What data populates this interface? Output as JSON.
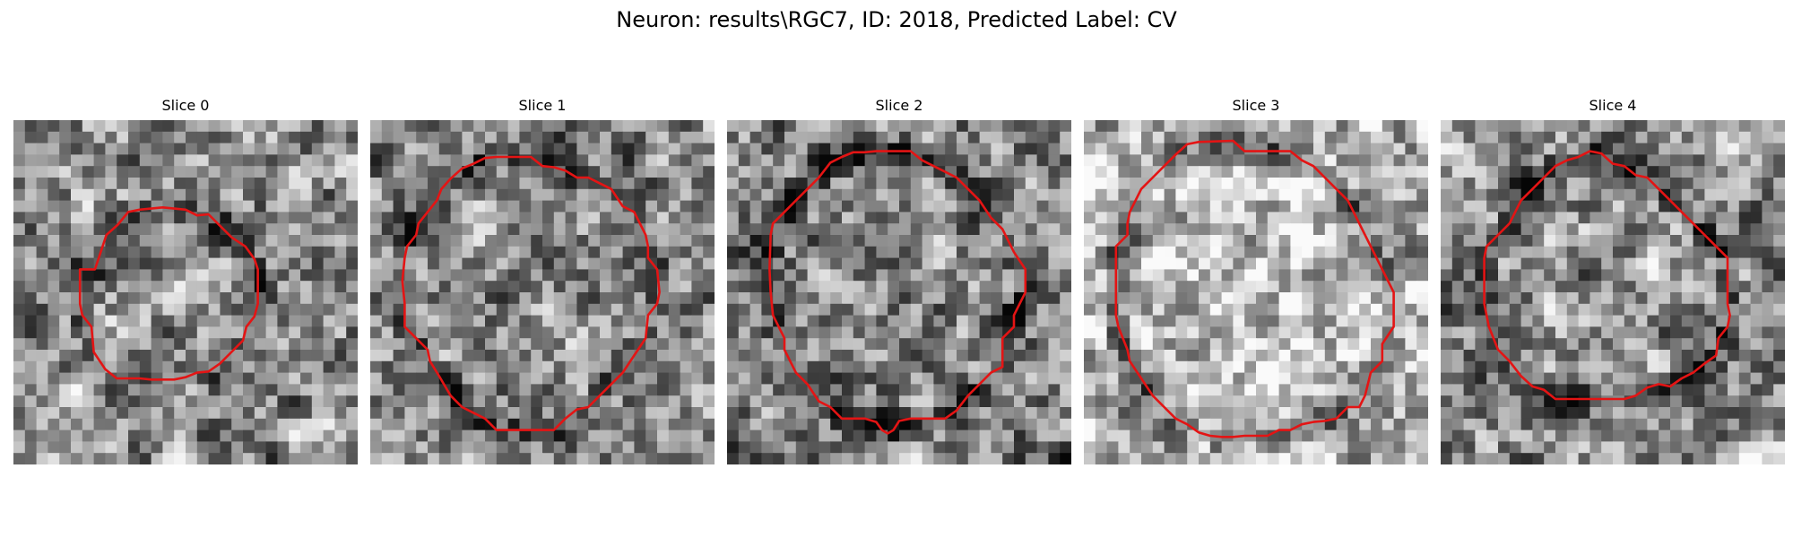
{
  "figure": {
    "title": "Neuron: results\\RGC7, ID: 2018, Predicted Label: CV"
  },
  "slices": [
    {
      "title": "Slice 0",
      "grid_size": 30,
      "base_tone": 0.56,
      "contour_color": "#e41414",
      "contour": [
        [
          7.1,
          13.0
        ],
        [
          8.1,
          10.0
        ],
        [
          9.1,
          9.1
        ],
        [
          10.0,
          8.0
        ],
        [
          11.0,
          7.8
        ],
        [
          13.0,
          7.6
        ],
        [
          15.0,
          7.8
        ],
        [
          16.0,
          8.3
        ],
        [
          17.0,
          8.2
        ],
        [
          18.0,
          9.2
        ],
        [
          19.0,
          10.2
        ],
        [
          20.2,
          11.0
        ],
        [
          21.0,
          12.1
        ],
        [
          21.3,
          13.0
        ],
        [
          21.3,
          16.0
        ],
        [
          21.0,
          17.1
        ],
        [
          20.3,
          18.0
        ],
        [
          20.0,
          19.2
        ],
        [
          19.2,
          20.0
        ],
        [
          18.0,
          21.2
        ],
        [
          17.0,
          21.9
        ],
        [
          16.0,
          22.0
        ],
        [
          15.0,
          22.4
        ],
        [
          14.0,
          22.6
        ],
        [
          12.0,
          22.6
        ],
        [
          11.0,
          22.5
        ],
        [
          9.0,
          22.5
        ],
        [
          8.0,
          21.7
        ],
        [
          7.0,
          20.2
        ],
        [
          6.8,
          18.0
        ],
        [
          6.0,
          17.0
        ],
        [
          5.8,
          16.0
        ],
        [
          5.8,
          13.0
        ]
      ]
    },
    {
      "title": "Slice 1",
      "grid_size": 30,
      "base_tone": 0.52,
      "contour_color": "#e41414",
      "contour": [
        [
          5.8,
          7.0
        ],
        [
          6.2,
          6.0
        ],
        [
          7.0,
          5.1
        ],
        [
          8.0,
          4.2
        ],
        [
          9.0,
          3.8
        ],
        [
          10.0,
          3.3
        ],
        [
          11.0,
          3.2
        ],
        [
          14.0,
          3.2
        ],
        [
          15.0,
          4.0
        ],
        [
          16.0,
          4.1
        ],
        [
          17.0,
          4.4
        ],
        [
          18.0,
          5.0
        ],
        [
          19.0,
          5.0
        ],
        [
          20.0,
          5.5
        ],
        [
          21.0,
          6.0
        ],
        [
          22.0,
          7.5
        ],
        [
          23.0,
          8.0
        ],
        [
          24.0,
          10.0
        ],
        [
          24.2,
          11.0
        ],
        [
          24.2,
          12.0
        ],
        [
          25.0,
          13.0
        ],
        [
          25.2,
          15.0
        ],
        [
          25.0,
          16.0
        ],
        [
          24.2,
          17.0
        ],
        [
          24.0,
          19.0
        ],
        [
          23.0,
          20.5
        ],
        [
          22.0,
          22.0
        ],
        [
          21.0,
          23.0
        ],
        [
          20.0,
          24.0
        ],
        [
          19.0,
          25.0
        ],
        [
          18.0,
          25.2
        ],
        [
          17.0,
          26.0
        ],
        [
          16.0,
          27.0
        ],
        [
          15.0,
          27.0
        ],
        [
          14.0,
          27.0
        ],
        [
          13.0,
          27.0
        ],
        [
          12.0,
          27.0
        ],
        [
          11.0,
          27.0
        ],
        [
          10.0,
          26.0
        ],
        [
          9.0,
          25.5
        ],
        [
          8.0,
          25.0
        ],
        [
          7.0,
          24.0
        ],
        [
          6.0,
          22.3
        ],
        [
          5.2,
          21.0
        ],
        [
          5.0,
          20.0
        ],
        [
          4.0,
          19.0
        ],
        [
          3.0,
          18.0
        ],
        [
          3.0,
          16.0
        ],
        [
          2.8,
          14.0
        ],
        [
          3.0,
          12.0
        ],
        [
          3.2,
          11.0
        ],
        [
          4.0,
          10.0
        ],
        [
          4.2,
          9.0
        ],
        [
          5.0,
          8.0
        ]
      ]
    },
    {
      "title": "Slice 2",
      "grid_size": 30,
      "base_tone": 0.5,
      "contour_color": "#e41414",
      "contour": [
        [
          5.0,
          8.0
        ],
        [
          6.0,
          7.0
        ],
        [
          7.0,
          6.0
        ],
        [
          8.0,
          5.0
        ],
        [
          9.0,
          3.7
        ],
        [
          10.0,
          3.2
        ],
        [
          11.0,
          2.8
        ],
        [
          12.0,
          2.8
        ],
        [
          13.0,
          2.7
        ],
        [
          16.0,
          2.7
        ],
        [
          17.0,
          3.5
        ],
        [
          18.0,
          4.0
        ],
        [
          19.0,
          4.5
        ],
        [
          20.0,
          5.0
        ],
        [
          21.0,
          6.0
        ],
        [
          22.0,
          7.0
        ],
        [
          23.0,
          8.5
        ],
        [
          24.0,
          9.5
        ],
        [
          25.0,
          11.5
        ],
        [
          26.0,
          13.0
        ],
        [
          26.0,
          15.0
        ],
        [
          25.0,
          17.0
        ],
        [
          25.0,
          18.0
        ],
        [
          24.0,
          19.0
        ],
        [
          24.0,
          21.5
        ],
        [
          23.0,
          22.0
        ],
        [
          22.0,
          23.0
        ],
        [
          21.0,
          24.0
        ],
        [
          20.0,
          25.3
        ],
        [
          19.0,
          26.0
        ],
        [
          17.5,
          26.0
        ],
        [
          16.0,
          26.0
        ],
        [
          15.0,
          26.2
        ],
        [
          14.5,
          27.0
        ],
        [
          14.0,
          27.3
        ],
        [
          13.5,
          27.0
        ],
        [
          13.0,
          26.3
        ],
        [
          12.0,
          26.0
        ],
        [
          10.0,
          26.0
        ],
        [
          9.0,
          25.0
        ],
        [
          8.0,
          24.5
        ],
        [
          7.0,
          23.0
        ],
        [
          6.0,
          22.0
        ],
        [
          5.5,
          21.0
        ],
        [
          5.0,
          20.0
        ],
        [
          5.0,
          19.0
        ],
        [
          4.0,
          17.0
        ],
        [
          3.8,
          15.0
        ],
        [
          3.7,
          13.0
        ],
        [
          3.8,
          10.0
        ],
        [
          4.0,
          9.0
        ]
      ]
    },
    {
      "title": "Slice 3",
      "grid_size": 30,
      "base_tone": 0.72,
      "contour_color": "#e41414",
      "contour": [
        [
          4.0,
          8.0
        ],
        [
          5.0,
          6.0
        ],
        [
          6.0,
          5.0
        ],
        [
          7.0,
          4.0
        ],
        [
          8.0,
          3.0
        ],
        [
          9.0,
          2.1
        ],
        [
          10.0,
          1.9
        ],
        [
          13.0,
          1.8
        ],
        [
          14.0,
          2.7
        ],
        [
          15.0,
          2.7
        ],
        [
          18.0,
          2.7
        ],
        [
          19.0,
          3.5
        ],
        [
          20.0,
          4.0
        ],
        [
          21.0,
          5.0
        ],
        [
          22.0,
          6.0
        ],
        [
          23.0,
          7.0
        ],
        [
          24.0,
          9.0
        ],
        [
          25.0,
          11.0
        ],
        [
          26.0,
          13.0
        ],
        [
          27.0,
          15.0
        ],
        [
          27.0,
          18.0
        ],
        [
          26.0,
          19.5
        ],
        [
          26.0,
          21.0
        ],
        [
          25.0,
          22.0
        ],
        [
          24.5,
          24.0
        ],
        [
          24.0,
          25.0
        ],
        [
          23.0,
          25.0
        ],
        [
          22.0,
          26.0
        ],
        [
          21.0,
          26.2
        ],
        [
          20.0,
          26.3
        ],
        [
          19.0,
          26.5
        ],
        [
          18.0,
          27.0
        ],
        [
          17.0,
          27.0
        ],
        [
          16.0,
          27.5
        ],
        [
          15.0,
          27.5
        ],
        [
          14.0,
          27.5
        ],
        [
          13.0,
          27.6
        ],
        [
          12.0,
          27.6
        ],
        [
          11.0,
          27.5
        ],
        [
          10.0,
          27.2
        ],
        [
          9.0,
          26.5
        ],
        [
          8.0,
          26.0
        ],
        [
          7.0,
          25.0
        ],
        [
          6.0,
          24.0
        ],
        [
          5.0,
          22.5
        ],
        [
          4.0,
          21.0
        ],
        [
          3.8,
          20.0
        ],
        [
          3.0,
          18.0
        ],
        [
          2.8,
          17.0
        ],
        [
          2.8,
          11.0
        ],
        [
          3.8,
          10.0
        ],
        [
          3.8,
          9.0
        ]
      ]
    },
    {
      "title": "Slice 4",
      "grid_size": 30,
      "base_tone": 0.55,
      "contour_color": "#e41414",
      "contour": [
        [
          5.0,
          10.0
        ],
        [
          6.0,
          9.0
        ],
        [
          7.0,
          7.0
        ],
        [
          8.0,
          6.0
        ],
        [
          9.0,
          5.0
        ],
        [
          10.0,
          4.0
        ],
        [
          11.0,
          3.5
        ],
        [
          12.0,
          3.2
        ],
        [
          13.0,
          2.7
        ],
        [
          14.0,
          2.9
        ],
        [
          15.0,
          3.8
        ],
        [
          16.0,
          4.0
        ],
        [
          17.0,
          4.8
        ],
        [
          18.0,
          5.0
        ],
        [
          19.0,
          6.0
        ],
        [
          20.0,
          7.0
        ],
        [
          21.0,
          8.0
        ],
        [
          22.0,
          9.0
        ],
        [
          23.0,
          10.0
        ],
        [
          24.0,
          11.0
        ],
        [
          25.0,
          12.0
        ],
        [
          25.0,
          16.0
        ],
        [
          25.2,
          17.0
        ],
        [
          25.0,
          18.0
        ],
        [
          24.2,
          19.0
        ],
        [
          24.0,
          20.5
        ],
        [
          23.0,
          21.2
        ],
        [
          22.0,
          22.0
        ],
        [
          21.0,
          22.5
        ],
        [
          20.0,
          23.2
        ],
        [
          19.0,
          23.0
        ],
        [
          18.0,
          23.3
        ],
        [
          17.0,
          24.0
        ],
        [
          16.0,
          24.3
        ],
        [
          15.0,
          24.3
        ],
        [
          14.0,
          24.3
        ],
        [
          12.0,
          24.3
        ],
        [
          10.0,
          24.3
        ],
        [
          9.0,
          23.5
        ],
        [
          8.0,
          23.2
        ],
        [
          7.0,
          22.3
        ],
        [
          6.0,
          21.0
        ],
        [
          5.0,
          20.0
        ],
        [
          4.2,
          18.0
        ],
        [
          3.8,
          16.0
        ],
        [
          3.8,
          14.0
        ],
        [
          3.8,
          12.0
        ],
        [
          4.0,
          11.0
        ]
      ]
    }
  ]
}
